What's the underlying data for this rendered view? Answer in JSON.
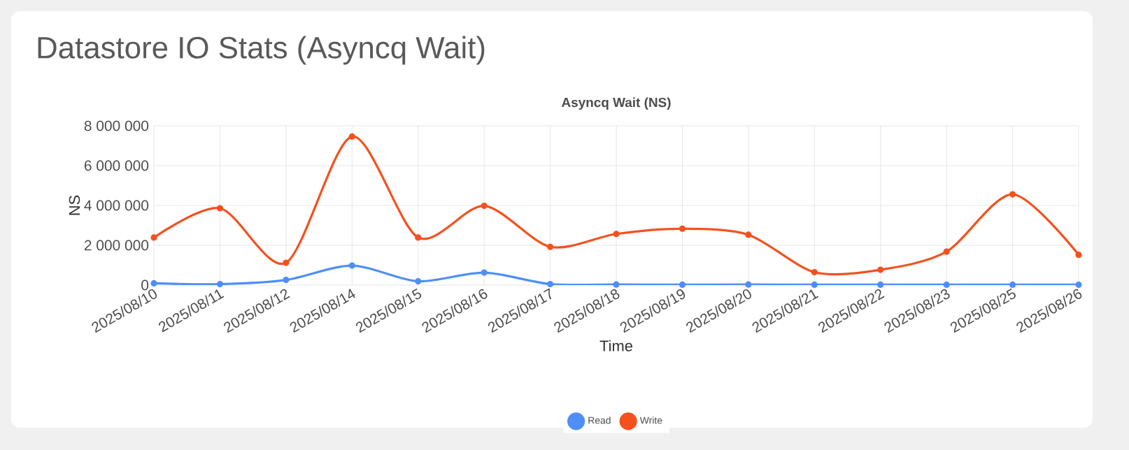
{
  "chart_data": {
    "type": "line",
    "title": "Datastore IO Stats (Asyncq Wait)",
    "subtitle": "Asyncq Wait (NS)",
    "xlabel": "Time",
    "ylabel": "NS",
    "categories": [
      "2025/08/10",
      "2025/08/11",
      "2025/08/12",
      "2025/08/14",
      "2025/08/15",
      "2025/08/16",
      "2025/08/17",
      "2025/08/18",
      "2025/08/19",
      "2025/08/20",
      "2025/08/21",
      "2025/08/22",
      "2025/08/23",
      "2025/08/25",
      "2025/08/26"
    ],
    "series": [
      {
        "name": "Read",
        "color": "#4e8ff7",
        "values": [
          90000,
          50000,
          260000,
          980000,
          190000,
          630000,
          50000,
          30000,
          20000,
          30000,
          20000,
          20000,
          20000,
          20000,
          20000
        ]
      },
      {
        "name": "Write",
        "color": "#f4511e",
        "values": [
          2390000,
          3860000,
          1120000,
          7460000,
          2390000,
          3980000,
          1920000,
          2570000,
          2830000,
          2530000,
          650000,
          770000,
          1680000,
          4560000,
          1520000
        ]
      }
    ],
    "ylim": [
      0,
      8000000
    ],
    "yticks": [
      0,
      {
        "value": 2000000,
        "label": "2 000 000"
      },
      {
        "value": 4000000,
        "label": "4 000 000"
      },
      {
        "value": 6000000,
        "label": "6 000 000"
      },
      {
        "value": 8000000,
        "label": "8 000 000"
      }
    ],
    "grid": true,
    "legend": "bottom",
    "marker": "circle",
    "line_style": "solid"
  }
}
